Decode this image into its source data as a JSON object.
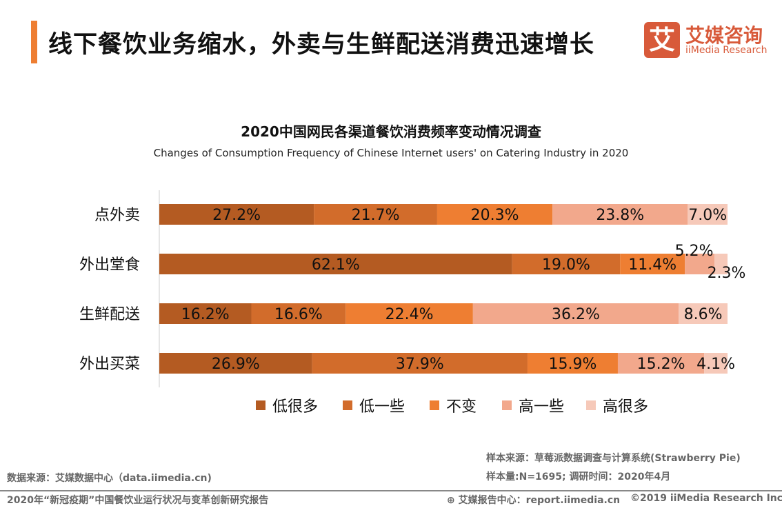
{
  "header": {
    "title": "线下餐饮业务缩水，外卖与生鲜配送消费迅速增长",
    "logo": {
      "mark": "艾",
      "cn": "艾媒咨询",
      "en": "iiMedia Research"
    }
  },
  "chart_data": {
    "type": "bar",
    "orientation": "horizontal-stacked-100",
    "title": "2020中国网民各渠道餐饮消费频率变动情况调查",
    "subtitle": "Changes of Consumption Frequency of Chinese Internet users' on Catering Industry in 2020",
    "categories": [
      "点外卖",
      "外出堂食",
      "生鲜配送",
      "外出买菜"
    ],
    "series": [
      {
        "name": "低很多",
        "color": "#B45B22",
        "values": [
          27.2,
          62.1,
          16.2,
          26.9
        ],
        "labels": [
          "27.2%",
          "62.1%",
          "16.2%",
          "26.9%"
        ]
      },
      {
        "name": "低一些",
        "color": "#D26C2B",
        "values": [
          21.7,
          19.0,
          16.6,
          37.9
        ],
        "labels": [
          "21.7%",
          "19.0%",
          "16.6%",
          "37.9%"
        ]
      },
      {
        "name": "不变",
        "color": "#EE7E32",
        "values": [
          20.3,
          11.4,
          22.4,
          15.9
        ],
        "labels": [
          "20.3%",
          "11.4%",
          "22.4%",
          "15.9%"
        ]
      },
      {
        "name": "高一些",
        "color": "#F2A88C",
        "values": [
          23.8,
          5.2,
          36.2,
          15.2
        ],
        "labels": [
          "23.8%",
          "5.2%",
          "36.2%",
          "15.2%"
        ]
      },
      {
        "name": "高很多",
        "color": "#F6C9B9",
        "values": [
          7.0,
          2.3,
          8.6,
          4.1
        ],
        "labels": [
          "7.0%",
          "2.3%",
          "8.6%",
          "4.1%"
        ]
      }
    ],
    "legend": "bottom",
    "grid": false
  },
  "footer": {
    "sample_source": "样本来源：草莓派数据调查与计算系统(Strawberry Pie)",
    "sample_size": "样本量:N=1695; 调研时间：2020年4月",
    "data_source": "数据来源：艾媒数据中心（data.iimedia.cn)",
    "report_title": "2020年“新冠疫期”中国餐饮业运行状况与变革创新研究报告",
    "report_center": "艾媒报告中心：report.iimedia.cn",
    "copyright": "©2019  iiMedia Research  Inc"
  }
}
